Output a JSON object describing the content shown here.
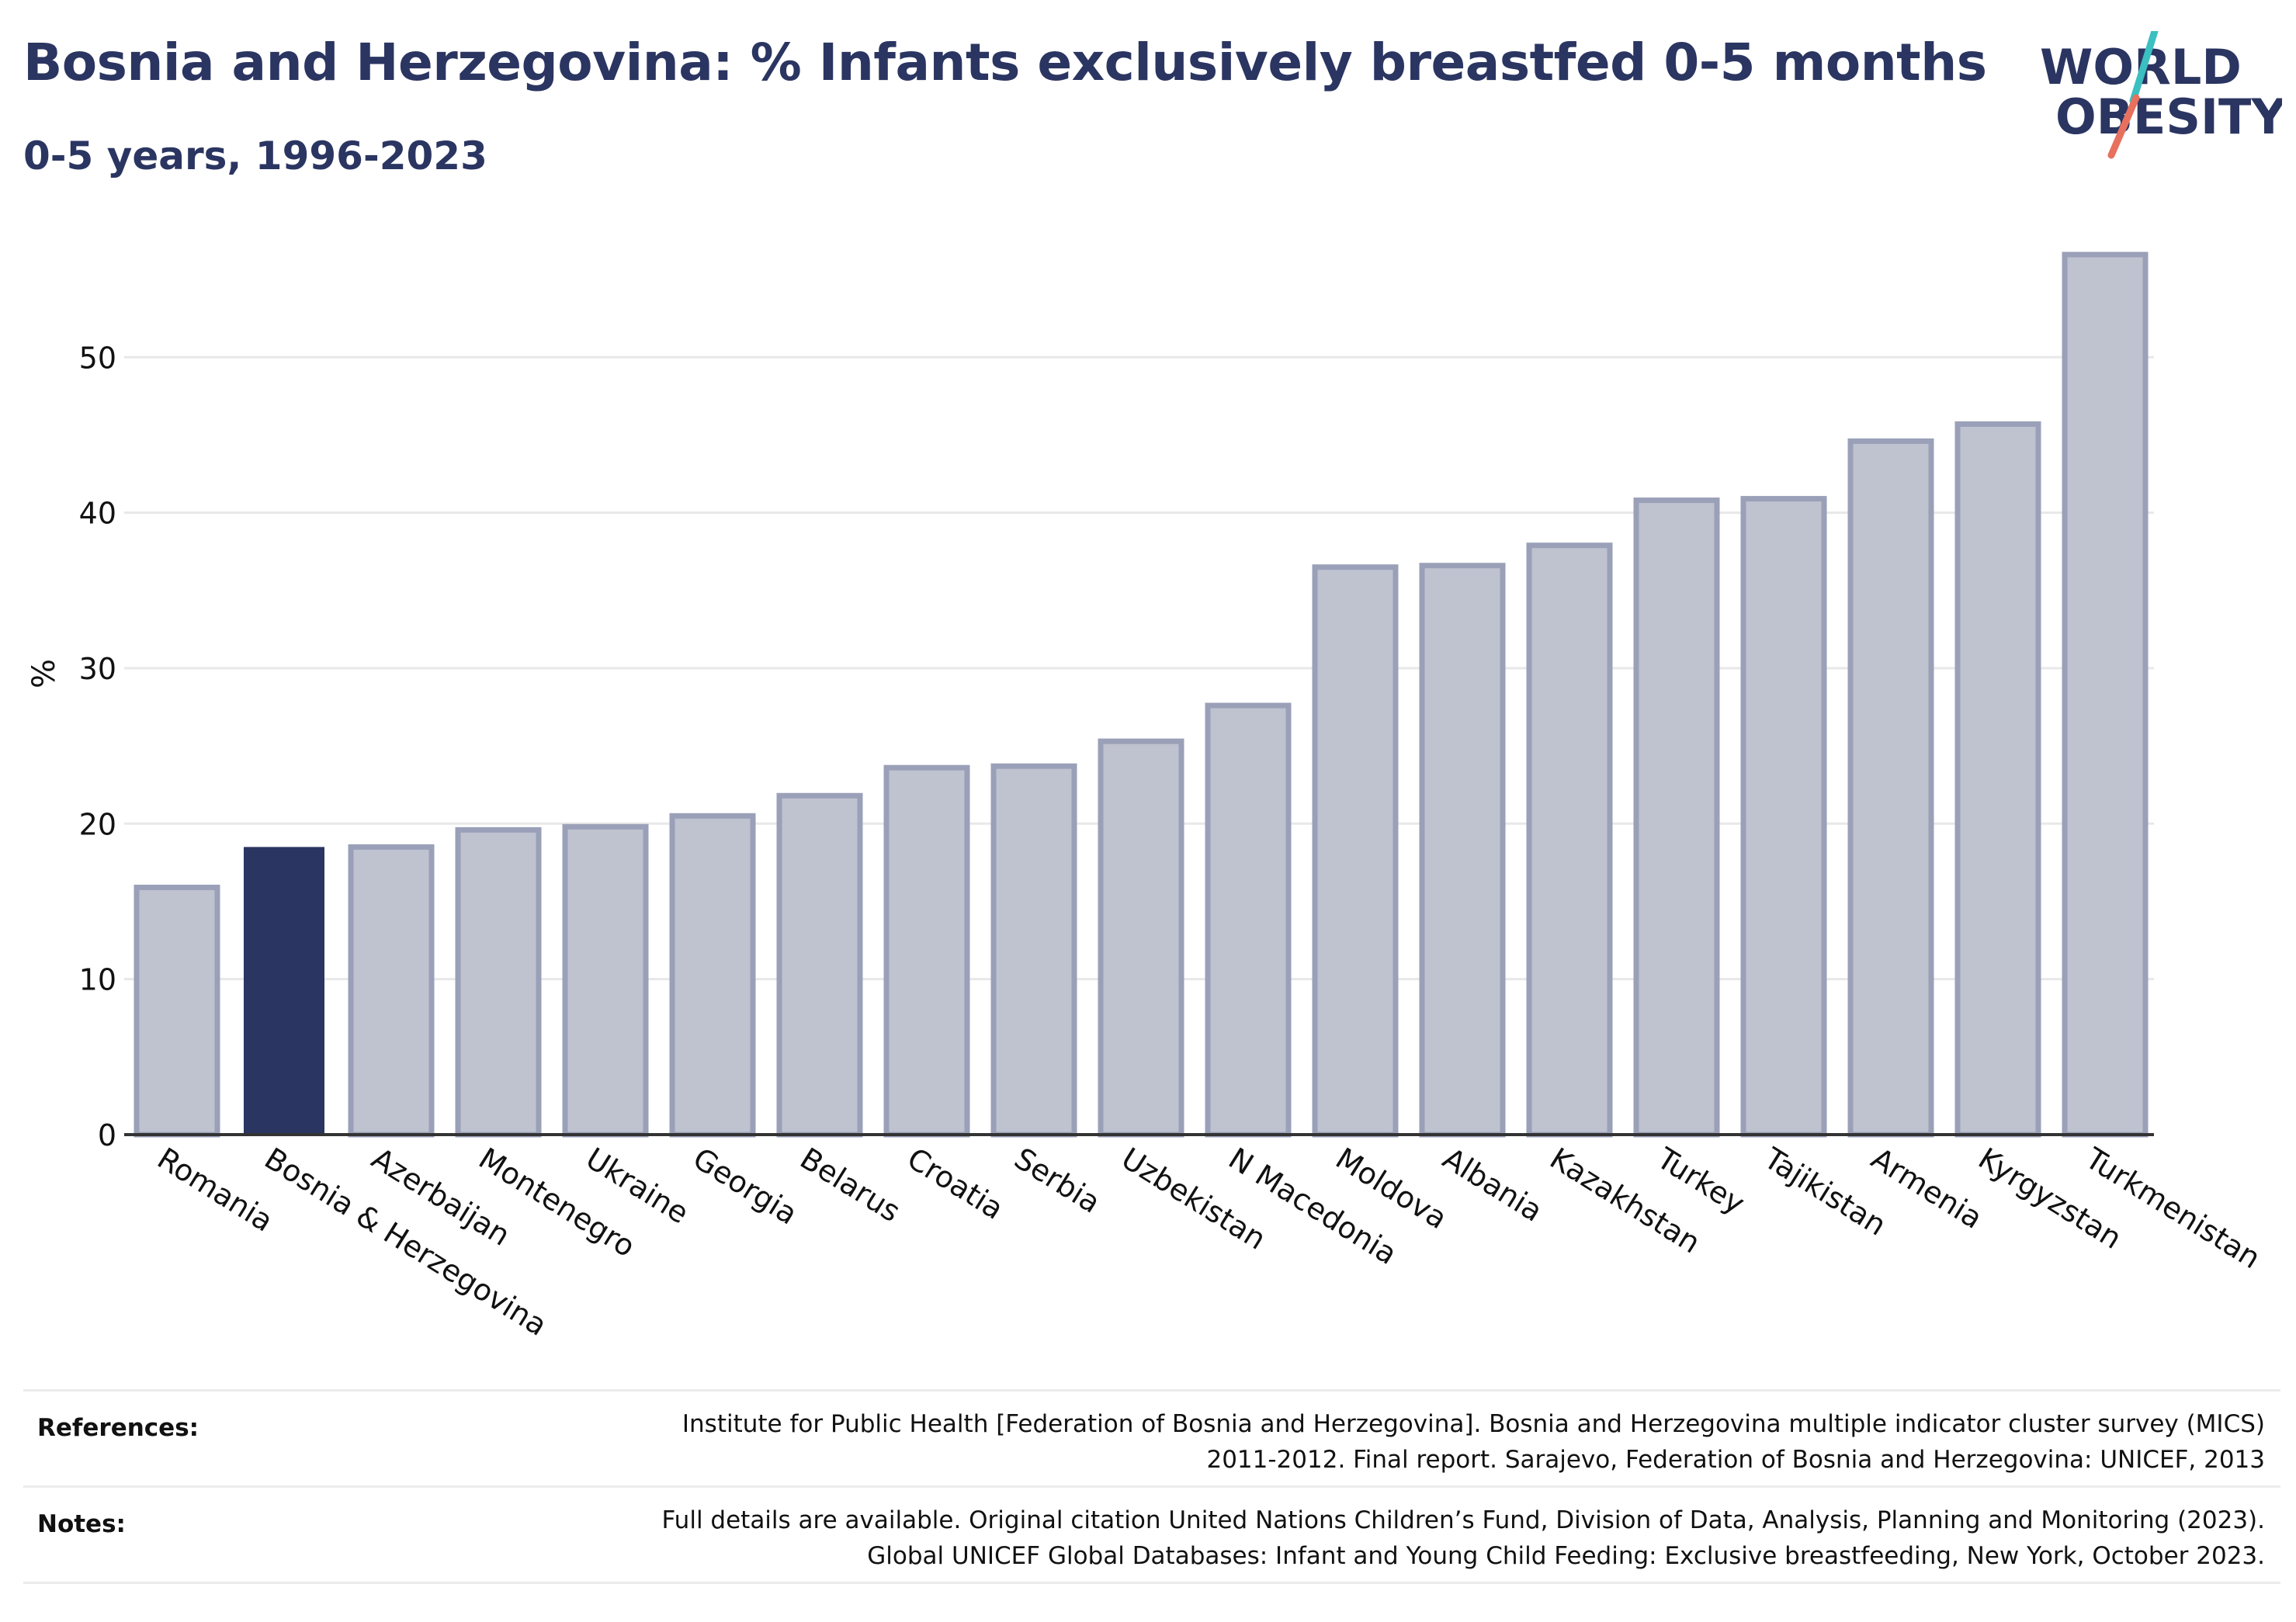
{
  "header": {
    "title": "Bosnia and Herzegovina: % Infants exclusively breastfed 0-5 months",
    "subtitle": "0-5 years, 1996-2023"
  },
  "logo": {
    "line1": "WORLD",
    "line2": "OBESITY"
  },
  "chart_data": {
    "type": "bar",
    "ylabel": "%",
    "xlabel": "",
    "ylim": [
      0,
      58
    ],
    "yticks": [
      0,
      10,
      20,
      30,
      40,
      50
    ],
    "grid": true,
    "categories": [
      "Romania",
      "Bosnia & Herzegovina",
      "Azerbaijan",
      "Montenegro",
      "Ukraine",
      "Georgia",
      "Belarus",
      "Croatia",
      "Serbia",
      "Uzbekistan",
      "N Macedonia",
      "Moldova",
      "Albania",
      "Kazakhstan",
      "Turkey",
      "Tajikistan",
      "Armenia",
      "Kyrgyzstan",
      "Turkmenistan"
    ],
    "values": [
      15.9,
      18.5,
      18.5,
      19.6,
      19.8,
      20.5,
      21.8,
      23.6,
      23.7,
      25.3,
      27.6,
      36.5,
      36.6,
      37.9,
      40.8,
      40.9,
      44.6,
      45.7,
      56.6
    ],
    "highlight": "Bosnia & Herzegovina",
    "colors": {
      "bar": "#bfc2cf",
      "bar_edge": "#9aa0b8",
      "highlight": "#2b3561",
      "grid": "#e8e8e8",
      "axis": "#333333"
    }
  },
  "footer": {
    "references_label": "References:",
    "references_text": [
      "Institute for Public Health [Federation of Bosnia and Herzegovina]. Bosnia and Herzegovina multiple indicator cluster survey (MICS)",
      "2011-2012. Final report. Sarajevo, Federation of Bosnia and Herzegovina: UNICEF, 2013"
    ],
    "notes_label": "Notes:",
    "notes_text": [
      "Full details are available. Original citation United Nations Children’s Fund, Division of Data, Analysis, Planning and Monitoring (2023).",
      "Global UNICEF Global Databases: Infant and Young Child Feeding: Exclusive breastfeeding, New York, October 2023."
    ]
  }
}
